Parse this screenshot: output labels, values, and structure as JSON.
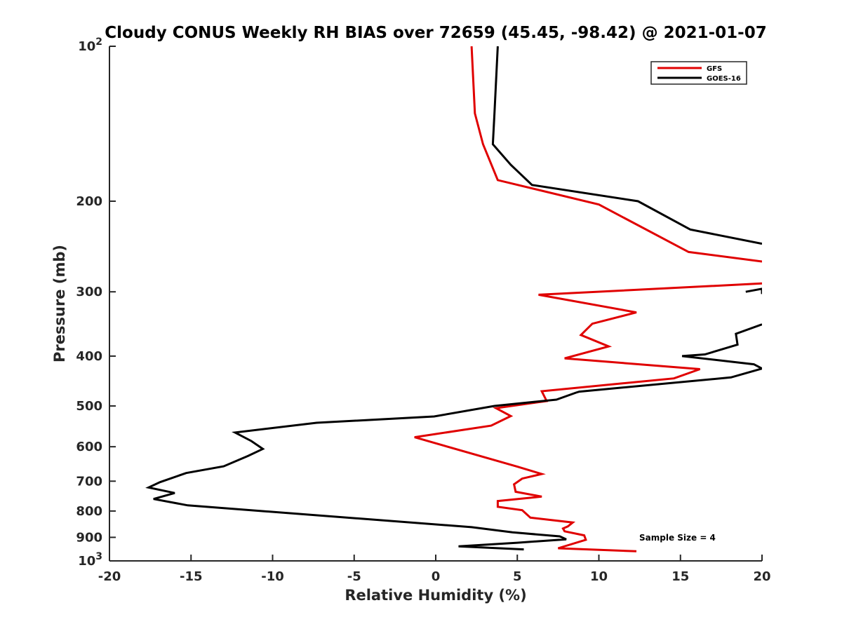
{
  "chart_data": {
    "type": "line",
    "title": "Cloudy CONUS Weekly RH BIAS over 72659 (45.45, -98.42) @ 2021-01-07",
    "xlabel": "Relative Humidity (%)",
    "ylabel": "Pressure (mb)",
    "xlim": [
      -20,
      20
    ],
    "ylim": [
      100,
      1000
    ],
    "yscale": "log",
    "y_reversed": true,
    "grid": false,
    "legend_position": "top-right",
    "x_ticks": [
      "-20",
      "-15",
      "-10",
      "-5",
      "0",
      "5",
      "10",
      "15",
      "20"
    ],
    "y_ticks": [
      {
        "value": 100,
        "base": "10",
        "exp": "2"
      },
      {
        "value": 200,
        "label": "200"
      },
      {
        "value": 300,
        "label": "300"
      },
      {
        "value": 400,
        "label": "400"
      },
      {
        "value": 500,
        "label": "500"
      },
      {
        "value": 600,
        "label": "600"
      },
      {
        "value": 700,
        "label": "700"
      },
      {
        "value": 800,
        "label": "800"
      },
      {
        "value": 900,
        "label": "900"
      },
      {
        "value": 1000,
        "base": "10",
        "exp": "3"
      }
    ],
    "annotation": "Sample Size = 4",
    "series": [
      {
        "name": "GFS",
        "color": "#e00000",
        "segments": [
          [
            [
              2.2,
              100
            ],
            [
              2.4,
              135
            ],
            [
              2.9,
              155
            ],
            [
              3.8,
              182
            ],
            [
              10,
              203
            ],
            [
              15.5,
              251
            ],
            [
              20,
              262
            ]
          ],
          [
            [
              20,
              289
            ],
            [
              6.3,
              304
            ],
            [
              12.3,
              329
            ],
            [
              9.6,
              346
            ],
            [
              8.9,
              364
            ],
            [
              10.6,
              383
            ],
            [
              7.9,
              404
            ],
            [
              16.2,
              424
            ],
            [
              14.6,
              442
            ],
            [
              6.5,
              468
            ],
            [
              6.8,
              489
            ],
            [
              3.7,
              505
            ],
            [
              4.6,
              523
            ],
            [
              3.4,
              546
            ],
            [
              -1.3,
              575
            ],
            [
              5,
              656
            ],
            [
              6.5,
              678
            ],
            [
              5.3,
              692
            ],
            [
              4.8,
              710
            ],
            [
              4.9,
              734
            ],
            [
              6.5,
              750
            ],
            [
              3.8,
              765
            ],
            [
              3.8,
              785
            ],
            [
              5.3,
              797
            ],
            [
              5.8,
              824
            ],
            [
              8.4,
              842
            ],
            [
              8.1,
              857
            ],
            [
              7.8,
              865
            ],
            [
              7.9,
              876
            ],
            [
              9.1,
              892
            ],
            [
              9.2,
              910
            ],
            [
              7.5,
              945
            ],
            [
              12.3,
              958
            ]
          ]
        ]
      },
      {
        "name": "GOES-16",
        "color": "#000000",
        "segments": [
          [
            [
              3.8,
              100
            ],
            [
              3.6,
              135
            ],
            [
              3.5,
              155
            ],
            [
              4.6,
              170
            ],
            [
              5.9,
              186
            ],
            [
              12.4,
              200
            ],
            [
              15.6,
              227
            ],
            [
              20,
              242
            ]
          ],
          [
            [
              19,
              300
            ],
            [
              20,
              296
            ],
            [
              20,
              303
            ]
          ],
          [
            [
              20,
              347
            ],
            [
              18.4,
              362
            ],
            [
              18.5,
              380
            ],
            [
              16.5,
              397
            ],
            [
              15.1,
              400
            ],
            [
              19.5,
              415
            ],
            [
              20,
              423
            ],
            [
              18.1,
              440
            ],
            [
              8.8,
              469
            ],
            [
              8.6,
              471
            ],
            [
              7.4,
              486
            ],
            [
              3.6,
              500
            ],
            [
              -0.1,
              524
            ],
            [
              -7.3,
              539
            ],
            [
              -12.3,
              563
            ],
            [
              -11.3,
              585
            ],
            [
              -10.6,
              606
            ],
            [
              -11.5,
              625
            ],
            [
              -13,
              655
            ],
            [
              -15.3,
              675
            ],
            [
              -16.9,
              703
            ],
            [
              -17.6,
              720
            ],
            [
              -16,
              738
            ],
            [
              -17.3,
              758
            ],
            [
              -15.2,
              780
            ],
            [
              2.2,
              860
            ],
            [
              4.7,
              880
            ],
            [
              7.6,
              896
            ],
            [
              8,
              908
            ],
            [
              5,
              922
            ],
            [
              1.4,
              937
            ],
            [
              5.4,
              950
            ]
          ]
        ]
      }
    ]
  }
}
